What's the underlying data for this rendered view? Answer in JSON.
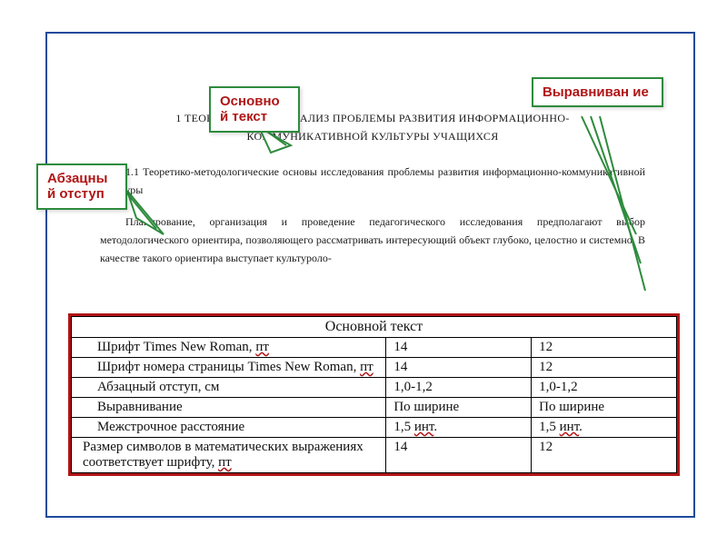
{
  "callouts": {
    "left": "Абзацны\nй отступ",
    "mid": "Основно\nй текст",
    "right": "Выравниван\nие"
  },
  "document": {
    "heading_line1": "1 ТЕОРЕТИЧЕСКИЙ АНАЛИЗ ПРОБЛЕМЫ РАЗВИТИЯ ИНФОРМАЦИОННО-",
    "heading_line2": "КОММУНИКАТИВНОЙ КУЛЬТУРЫ УЧАЩИХСЯ",
    "subheading": "1.1 Теоретико-методологические основы исследования проблемы развития информационно-коммуникативной культуры",
    "paragraph": "Планирование, организация и проведение педагогического исследования предполагают выбор методологического ориентира, позволяющего рассматривать интересующий объект глубоко, целостно и системно. В качестве такого ориентира выступает культуроло-"
  },
  "table": {
    "title": "Основной текст",
    "rows": [
      {
        "label": "Шрифт Times New Roman, ",
        "label_ul": "пт",
        "v1": "14",
        "v2": "12"
      },
      {
        "label": "Шрифт номера страницы Times New Roman, ",
        "label_ul": "пт",
        "v1": "14",
        "v2": "12",
        "wrap": true
      },
      {
        "label": "Абзацный отступ, см",
        "label_ul": "",
        "v1": "1,0-1,2",
        "v2": "1,0-1,2"
      },
      {
        "label": "Выравнивание",
        "label_ul": "",
        "v1": "По ширине",
        "v2": "По ширине"
      },
      {
        "label": "Межстрочное расстояние",
        "label_ul": "",
        "v1": "1,5 инт.",
        "v2": "1,5 инт.",
        "v_ul": true
      },
      {
        "label": "Размер символов в математических выражениях соответствует шрифту, ",
        "label_ul": "пт",
        "v1": "14",
        "v2": "12",
        "noindent": true
      }
    ]
  },
  "style": {
    "frame_color": "#1e4a9c",
    "callout_border": "#2e8b3d",
    "callout_text": "#b01515",
    "table_border": "#b01515",
    "connector_color": "#2e8b3d"
  }
}
